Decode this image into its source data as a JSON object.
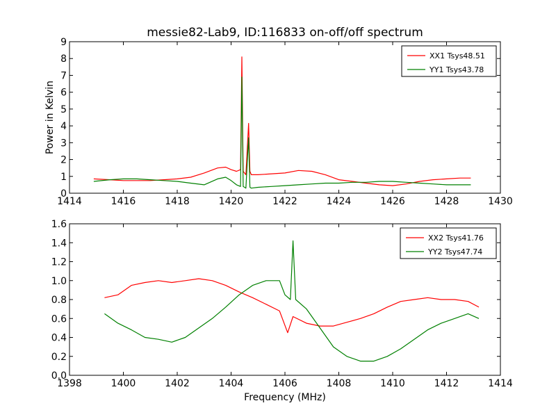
{
  "chart_data": [
    {
      "type": "line",
      "title": "messie82-Lab9, ID:116833 on-off/off spectrum",
      "xlabel": "",
      "ylabel": "Power in Kelvin",
      "xlim": [
        1414,
        1430
      ],
      "ylim": [
        0,
        9
      ],
      "xticks": [
        "1414",
        "1416",
        "1418",
        "1420",
        "1422",
        "1424",
        "1426",
        "1428",
        "1430"
      ],
      "yticks": [
        "0",
        "1",
        "2",
        "3",
        "4",
        "5",
        "6",
        "7",
        "8",
        "9"
      ],
      "grid": false,
      "legend": "top-right",
      "series": [
        {
          "name": "XX1 Tsys48.51",
          "color": "#ff0000",
          "x": [
            1414.9,
            1415.5,
            1416.0,
            1416.5,
            1417.0,
            1417.5,
            1418.0,
            1418.5,
            1419.0,
            1419.5,
            1419.8,
            1420.0,
            1420.2,
            1420.35,
            1420.4,
            1420.45,
            1420.55,
            1420.65,
            1420.7,
            1420.75,
            1421.0,
            1421.5,
            1422.0,
            1422.5,
            1423.0,
            1423.5,
            1424.0,
            1424.5,
            1425.0,
            1425.5,
            1426.0,
            1426.5,
            1427.0,
            1427.5,
            1428.0,
            1428.5,
            1428.9
          ],
          "y": [
            0.85,
            0.8,
            0.75,
            0.75,
            0.75,
            0.8,
            0.85,
            0.95,
            1.2,
            1.5,
            1.55,
            1.4,
            1.3,
            1.4,
            8.1,
            1.3,
            1.1,
            4.15,
            1.3,
            1.1,
            1.1,
            1.15,
            1.2,
            1.35,
            1.3,
            1.1,
            0.8,
            0.7,
            0.6,
            0.5,
            0.45,
            0.55,
            0.7,
            0.8,
            0.85,
            0.9,
            0.9
          ]
        },
        {
          "name": "YY1 Tsys43.78",
          "color": "#008000",
          "x": [
            1414.9,
            1415.5,
            1416.0,
            1416.5,
            1417.0,
            1417.5,
            1418.0,
            1418.5,
            1419.0,
            1419.5,
            1419.8,
            1420.0,
            1420.2,
            1420.35,
            1420.4,
            1420.45,
            1420.55,
            1420.65,
            1420.7,
            1420.75,
            1421.0,
            1421.5,
            1422.0,
            1422.5,
            1423.0,
            1423.5,
            1424.0,
            1424.5,
            1425.0,
            1425.5,
            1426.0,
            1426.5,
            1427.0,
            1427.5,
            1428.0,
            1428.5,
            1428.9
          ],
          "y": [
            0.7,
            0.8,
            0.85,
            0.85,
            0.8,
            0.75,
            0.7,
            0.6,
            0.5,
            0.85,
            0.95,
            0.75,
            0.5,
            0.4,
            6.9,
            0.4,
            0.3,
            3.3,
            0.35,
            0.3,
            0.35,
            0.4,
            0.45,
            0.5,
            0.55,
            0.6,
            0.6,
            0.65,
            0.65,
            0.7,
            0.7,
            0.65,
            0.6,
            0.55,
            0.5,
            0.5,
            0.5
          ]
        }
      ]
    },
    {
      "type": "line",
      "title": "",
      "xlabel": "Frequency (MHz)",
      "ylabel": "",
      "xlim": [
        1398,
        1414
      ],
      "ylim": [
        0,
        1.6
      ],
      "xticks": [
        "1398",
        "1400",
        "1402",
        "1404",
        "1406",
        "1408",
        "1410",
        "1412",
        "1414"
      ],
      "yticks": [
        "0.0",
        "0.2",
        "0.4",
        "0.6",
        "0.8",
        "1.0",
        "1.2",
        "1.4",
        "1.6"
      ],
      "grid": false,
      "legend": "top-right",
      "series": [
        {
          "name": "XX2 Tsys41.76",
          "color": "#ff0000",
          "x": [
            1399.3,
            1399.8,
            1400.3,
            1400.8,
            1401.3,
            1401.8,
            1402.3,
            1402.8,
            1403.3,
            1403.8,
            1404.3,
            1404.8,
            1405.3,
            1405.8,
            1406.1,
            1406.3,
            1406.8,
            1407.3,
            1407.8,
            1408.3,
            1408.8,
            1409.3,
            1409.8,
            1410.3,
            1410.8,
            1411.3,
            1411.8,
            1412.3,
            1412.8,
            1413.2
          ],
          "y": [
            0.82,
            0.85,
            0.95,
            0.98,
            1.0,
            0.98,
            1.0,
            1.02,
            1.0,
            0.95,
            0.88,
            0.82,
            0.75,
            0.68,
            0.45,
            0.62,
            0.55,
            0.52,
            0.52,
            0.56,
            0.6,
            0.65,
            0.72,
            0.78,
            0.8,
            0.82,
            0.8,
            0.8,
            0.78,
            0.72
          ]
        },
        {
          "name": "YY2 Tsys47.74",
          "color": "#008000",
          "x": [
            1399.3,
            1399.8,
            1400.3,
            1400.8,
            1401.3,
            1401.8,
            1402.3,
            1402.8,
            1403.3,
            1403.8,
            1404.3,
            1404.8,
            1405.3,
            1405.8,
            1406.0,
            1406.2,
            1406.3,
            1406.4,
            1406.8,
            1407.3,
            1407.8,
            1408.3,
            1408.8,
            1409.3,
            1409.8,
            1410.3,
            1410.8,
            1411.3,
            1411.8,
            1412.3,
            1412.8,
            1413.2
          ],
          "y": [
            0.65,
            0.55,
            0.48,
            0.4,
            0.38,
            0.35,
            0.4,
            0.5,
            0.6,
            0.72,
            0.85,
            0.95,
            1.0,
            1.0,
            0.85,
            0.8,
            1.42,
            0.8,
            0.7,
            0.5,
            0.3,
            0.2,
            0.15,
            0.15,
            0.2,
            0.28,
            0.38,
            0.48,
            0.55,
            0.6,
            0.65,
            0.6
          ]
        }
      ]
    }
  ]
}
